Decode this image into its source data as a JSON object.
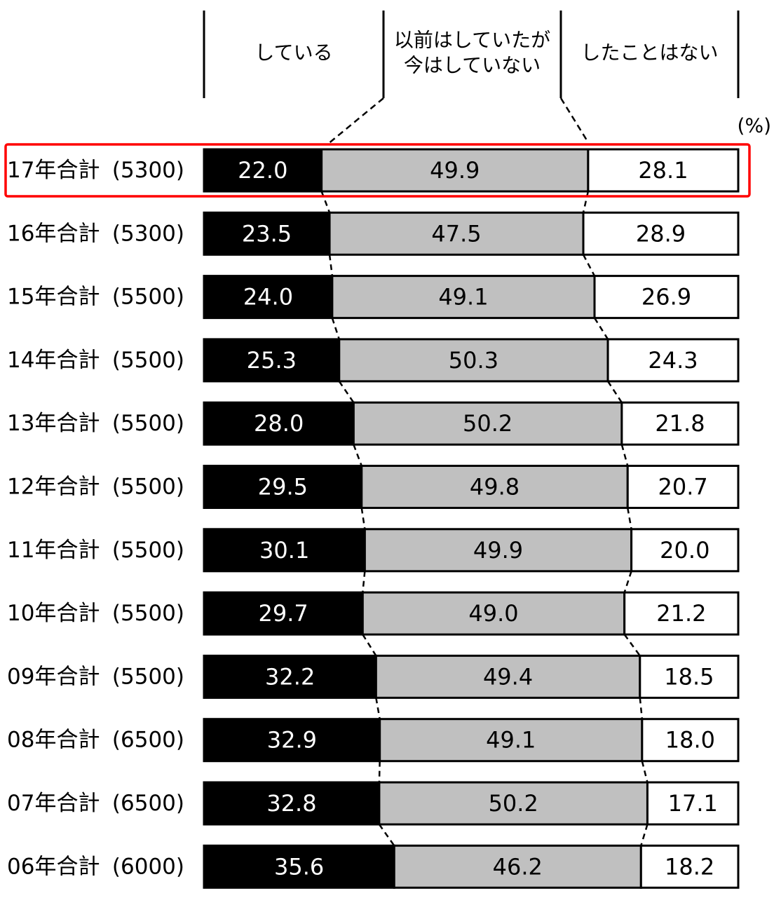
{
  "chart_data": {
    "type": "bar",
    "orientation": "horizontal",
    "stacked": true,
    "percent_unit_label": "(%)",
    "series": [
      {
        "name": "している",
        "values": [
          22.0,
          23.5,
          24.0,
          25.3,
          28.0,
          29.5,
          30.1,
          29.7,
          32.2,
          32.9,
          32.8,
          35.6
        ]
      },
      {
        "name": "以前はしていたが今はしていない",
        "values": [
          49.9,
          47.5,
          49.1,
          50.3,
          50.2,
          49.8,
          49.9,
          49.0,
          49.4,
          49.1,
          50.2,
          46.2
        ]
      },
      {
        "name": "したことはない",
        "values": [
          28.1,
          28.9,
          26.9,
          24.3,
          21.8,
          20.7,
          20.0,
          21.2,
          18.5,
          18.0,
          17.1,
          18.2
        ]
      }
    ],
    "series_header_lines": [
      [
        "している"
      ],
      [
        "以前はしていたが",
        "今はしていない"
      ],
      [
        "したことはない"
      ]
    ],
    "categories": [
      "17年合計",
      "16年合計",
      "15年合計",
      "14年合計",
      "13年合計",
      "12年合計",
      "11年合計",
      "10年合計",
      "09年合計",
      "08年合計",
      "07年合計",
      "06年合計"
    ],
    "sample_sizes": [
      "(5300)",
      "(5300)",
      "(5500)",
      "(5500)",
      "(5500)",
      "(5500)",
      "(5500)",
      "(5500)",
      "(5500)",
      "(6500)",
      "(6500)",
      "(6000)"
    ],
    "highlighted_category": "17年合計",
    "colors": {
      "series": [
        "#000000",
        "#c0c0c0",
        "#ffffff"
      ],
      "label_text": [
        "#ffffff",
        "#000000",
        "#000000"
      ],
      "highlight": "#ff0000"
    },
    "xlim": [
      0,
      100
    ],
    "grid": false,
    "legend": "top"
  }
}
